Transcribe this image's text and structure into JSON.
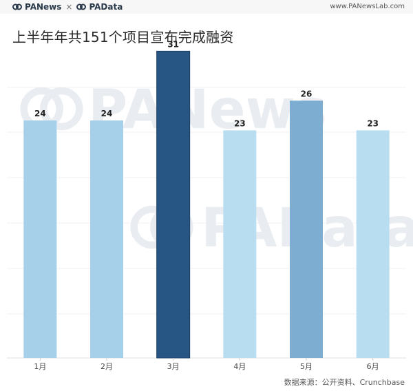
{
  "header": {
    "brand_primary": "PANews",
    "brand_separator": "×",
    "brand_secondary": "PAData",
    "site_url": "www.PANewsLab.com"
  },
  "watermarks": [
    "PANews",
    "PAData"
  ],
  "footer": {
    "source": "数据来源：公开资料、Crunchbase"
  },
  "chart_data": {
    "type": "bar",
    "title": "上半年年共151个项目宣布完成融资",
    "categories": [
      "1月",
      "2月",
      "3月",
      "4月",
      "5月",
      "6月"
    ],
    "values": [
      24,
      24,
      31,
      23,
      26,
      23
    ],
    "colors": [
      "#a6cfe9",
      "#a6cfe9",
      "#275684",
      "#b8ddf1",
      "#7dadd0",
      "#b8ddf1"
    ],
    "xlabel": "",
    "ylabel": "",
    "ylim": [
      0,
      32
    ],
    "grid": true,
    "legend": "none"
  }
}
